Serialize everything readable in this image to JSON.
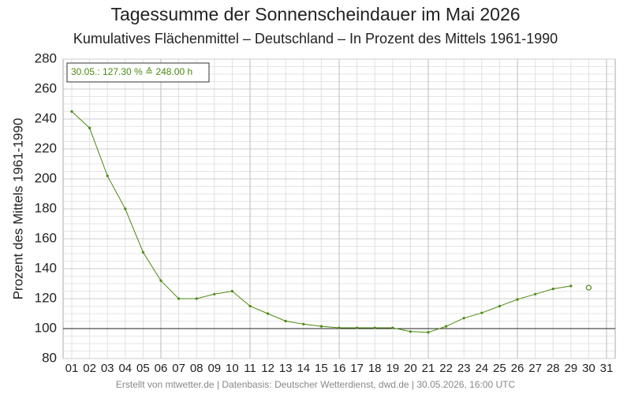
{
  "chart_data": {
    "type": "line",
    "title": "Tagessumme der Sonnenscheindauer im Mai 2026",
    "subtitle": "Kumulatives Flächenmittel – Deutschland – In Prozent des Mittels 1961-1990",
    "y_label": "Prozent des Mittels 1961-1990",
    "annotation": "30.05.: 127.30 % ≙ 248.00 h",
    "footer": "Erstellt von mtwetter.de | Datenbasis: Deutscher Wetterdienst, dwd.de | 30.05.2026, 16:00 UTC",
    "categories": [
      "01",
      "02",
      "03",
      "04",
      "05",
      "06",
      "07",
      "08",
      "09",
      "10",
      "11",
      "12",
      "13",
      "14",
      "15",
      "16",
      "17",
      "18",
      "19",
      "20",
      "21",
      "22",
      "23",
      "24",
      "25",
      "26",
      "27",
      "28",
      "29",
      "30",
      "31"
    ],
    "series": [
      {
        "color": "#4a8a10",
        "marker": "dot",
        "values": [
          245,
          234,
          202,
          180,
          151,
          132,
          120,
          120,
          123,
          125,
          115,
          110,
          105,
          103,
          101.5,
          100.5,
          100.5,
          100.5,
          100.5,
          98,
          97.5,
          101.5,
          107,
          110.5,
          115,
          119.5,
          123,
          126.5,
          128.5,
          null,
          null
        ]
      },
      {
        "color": "#4a8a10",
        "marker": "open",
        "values": [
          null,
          null,
          null,
          null,
          null,
          null,
          null,
          null,
          null,
          null,
          null,
          null,
          null,
          null,
          null,
          null,
          null,
          null,
          null,
          null,
          null,
          null,
          null,
          null,
          null,
          null,
          null,
          null,
          null,
          127.3,
          null
        ]
      }
    ],
    "reference_line": 100,
    "ylim": [
      80,
      280
    ],
    "yticks": [
      80,
      100,
      120,
      140,
      160,
      180,
      200,
      220,
      240,
      260,
      280
    ],
    "grid": true
  }
}
